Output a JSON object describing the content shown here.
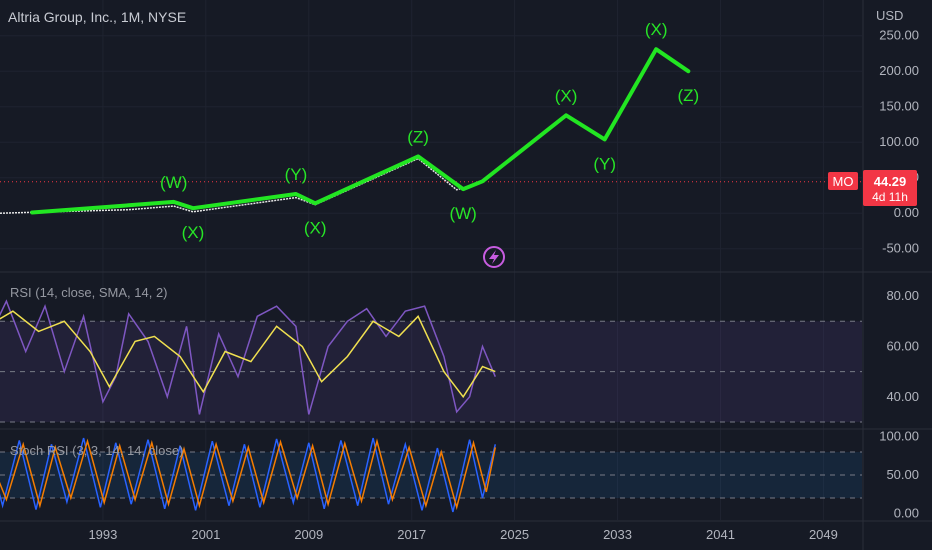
{
  "header": {
    "title": "Altria Group, Inc., 1M, NYSE",
    "currency": "USD"
  },
  "price_badge": {
    "symbol": "MO",
    "price": "44.29",
    "countdown": "4d 11h",
    "color": "#f23645"
  },
  "indicators": {
    "rsi_label": "RSI (14, close, SMA, 14, 2)",
    "stoch_label": "Stoch RSI (3, 3, 14, 14, close)"
  },
  "colors": {
    "background": "#161a25",
    "wave": "#22e622",
    "rsi_line": "#7e57c2",
    "rsi_ma": "#f0e050",
    "stoch_k": "#2962ff",
    "stoch_d": "#f57c00",
    "band": "#7e57c2"
  },
  "icons": [
    "lightning-icon"
  ],
  "chart_data": [
    {
      "type": "line",
      "title": "Altria Group, Inc., 1M, NYSE",
      "ylabel": "USD",
      "xlim": [
        1985,
        2052
      ],
      "ylim": [
        -80,
        275
      ],
      "y_ticks": [
        "250.00",
        "200.00",
        "150.00",
        "100.00",
        "50.00",
        "0.00",
        "-50.00"
      ],
      "x_ticks": [
        "1993",
        "2001",
        "2009",
        "2017",
        "2025",
        "2033",
        "2041",
        "2049"
      ],
      "series": [
        {
          "values_x": [
            1985,
            1995,
            1998.5,
            2000,
            2008,
            2009.5,
            2017.5,
            2020.5,
            2022.5
          ],
          "values_y": [
            0,
            5,
            10,
            2,
            22,
            12,
            77,
            33,
            44
          ]
        },
        {
          "values_x": [
            1987.5,
            1998.5,
            2000,
            2008,
            2009.5,
            2017.5,
            2021,
            2022.5,
            2029,
            2032,
            2036,
            2038.5
          ],
          "values_y": [
            1,
            16,
            7,
            27,
            14,
            80,
            34,
            45,
            138,
            104,
            231,
            200
          ]
        }
      ],
      "wave_labels": [
        {
          "text": "(W)",
          "x": 1998.5,
          "y": 16
        },
        {
          "text": "(X)",
          "x": 2000,
          "y": 7
        },
        {
          "text": "(Y)",
          "x": 2008,
          "y": 27
        },
        {
          "text": "(X)",
          "x": 2009.5,
          "y": 14
        },
        {
          "text": "(Z)",
          "x": 2017.5,
          "y": 80
        },
        {
          "text": "(W)",
          "x": 2021,
          "y": 34
        },
        {
          "text": "(X)",
          "x": 2029,
          "y": 138
        },
        {
          "text": "(Y)",
          "x": 2032,
          "y": 104
        },
        {
          "text": "(X)",
          "x": 2036,
          "y": 231
        },
        {
          "text": "(Z)",
          "x": 2038.5,
          "y": 200
        }
      ],
      "last_price": 44.29
    },
    {
      "type": "line",
      "title": "RSI (14, close, SMA, 14, 2)",
      "ylim": [
        28,
        88
      ],
      "y_ticks": [
        "80.00",
        "60.00",
        "40.00"
      ],
      "bands": [
        70,
        50,
        30
      ],
      "series": [
        {
          "name": "RSI",
          "x": [
            1984,
            1985.5,
            1987,
            1988.5,
            1990,
            1991.5,
            1993,
            1994,
            1995,
            1996.5,
            1998,
            1999.5,
            2000.5,
            2002,
            2003.5,
            2005,
            2006.5,
            2008,
            2009,
            2010.5,
            2012,
            2013.5,
            2015,
            2016.5,
            2018,
            2019.5,
            2020.5,
            2021.5,
            2022.5,
            2023.5
          ],
          "y": [
            62,
            78,
            58,
            76,
            50,
            72,
            38,
            48,
            73,
            62,
            40,
            68,
            33,
            65,
            48,
            72,
            76,
            68,
            33,
            60,
            70,
            75,
            64,
            74,
            76,
            56,
            34,
            40,
            60,
            48
          ]
        },
        {
          "name": "RSI-based MA",
          "x": [
            1984,
            1986,
            1988,
            1990,
            1992,
            1993.5,
            1995.5,
            1997,
            1999,
            2000.8,
            2002.5,
            2004.5,
            2006.5,
            2008.5,
            2010,
            2012,
            2014,
            2016,
            2017.5,
            2019.5,
            2021,
            2022.5,
            2023.5
          ],
          "y": [
            68,
            74,
            66,
            70,
            58,
            44,
            62,
            64,
            56,
            42,
            58,
            54,
            68,
            60,
            46,
            56,
            70,
            64,
            72,
            50,
            40,
            52,
            50
          ]
        }
      ]
    },
    {
      "type": "line",
      "title": "Stoch RSI (3, 3, 14, 14, close)",
      "ylim": [
        -6,
        106
      ],
      "y_ticks": [
        "100.00",
        "50.00",
        "0.00"
      ],
      "bands": [
        80,
        50,
        20
      ],
      "series": [
        {
          "name": "%K",
          "x": [
            1984,
            1985.2,
            1986.5,
            1987.8,
            1989,
            1990.2,
            1991.5,
            1992.8,
            1994,
            1995.2,
            1996.5,
            1997.8,
            1999,
            2000.2,
            2001.5,
            2002.8,
            2004,
            2005.2,
            2006.5,
            2007.8,
            2009,
            2010.2,
            2011.5,
            2012.8,
            2014,
            2015.2,
            2016.5,
            2017.8,
            2019,
            2020.2,
            2021.5,
            2022.5,
            2023.5
          ],
          "y": [
            85,
            10,
            95,
            5,
            90,
            15,
            98,
            8,
            92,
            12,
            96,
            6,
            88,
            4,
            94,
            10,
            90,
            8,
            97,
            14,
            92,
            6,
            95,
            10,
            98,
            12,
            90,
            4,
            85,
            2,
            96,
            20,
            90
          ]
        },
        {
          "name": "%D",
          "x": [
            1984,
            1985.5,
            1986.8,
            1988.1,
            1989.3,
            1990.5,
            1991.8,
            1993.1,
            1994.3,
            1995.5,
            1996.8,
            1998.1,
            1999.3,
            2000.5,
            2001.8,
            2003.1,
            2004.3,
            2005.5,
            2006.8,
            2008.1,
            2009.3,
            2010.5,
            2011.8,
            2013.1,
            2014.3,
            2015.5,
            2016.8,
            2018.1,
            2019.3,
            2020.5,
            2021.8,
            2022.8,
            2023.5
          ],
          "y": [
            80,
            18,
            90,
            10,
            86,
            20,
            94,
            14,
            88,
            18,
            92,
            12,
            84,
            10,
            90,
            16,
            86,
            14,
            93,
            20,
            88,
            12,
            91,
            16,
            94,
            18,
            86,
            10,
            80,
            8,
            92,
            28,
            86
          ]
        }
      ]
    }
  ]
}
